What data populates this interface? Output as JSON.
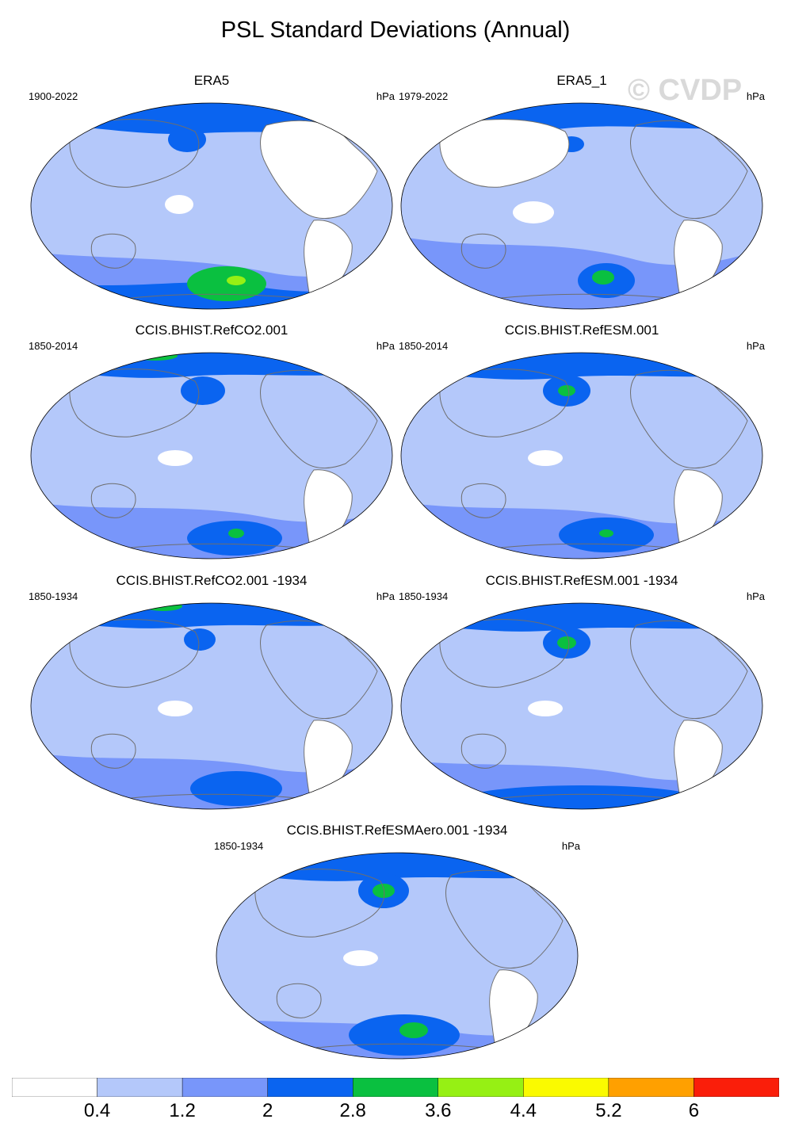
{
  "title": "PSL Standard Deviations (Annual)",
  "watermark": "© CVDP",
  "units": "hPa",
  "panels": [
    {
      "title": "ERA5",
      "period": "1900-2022"
    },
    {
      "title": "ERA5_1",
      "period": "1979-2022"
    },
    {
      "title": "CCIS.BHIST.RefCO2.001",
      "period": "1850-2014"
    },
    {
      "title": "CCIS.BHIST.RefESM.001",
      "period": "1850-2014"
    },
    {
      "title": "CCIS.BHIST.RefCO2.001 -1934",
      "period": "1850-1934"
    },
    {
      "title": "CCIS.BHIST.RefESM.001 -1934",
      "period": "1850-1934"
    },
    {
      "title": "CCIS.BHIST.RefESMAero.001 -1934",
      "period": "1850-1934"
    }
  ],
  "colorbar": {
    "labels": [
      "0.4",
      "1.2",
      "2",
      "2.8",
      "3.6",
      "4.4",
      "5.2",
      "6"
    ],
    "colors": [
      "#ffffff",
      "#b4c8fa",
      "#7896fa",
      "#0a64f0",
      "#0ac040",
      "#96f014",
      "#fafa00",
      "#ffa000",
      "#fa1e0a"
    ]
  },
  "palette": {
    "level1": "#b4c8fa",
    "level2": "#7896fa",
    "level3": "#0a64f0",
    "level4": "#0ac040",
    "level5": "#96f014",
    "land": "#ffffff",
    "coast": "#6e6e6e"
  }
}
